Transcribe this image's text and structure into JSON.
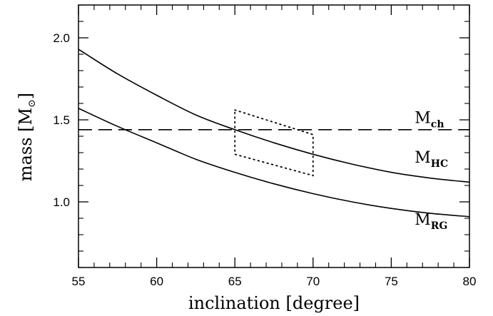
{
  "chart_data": {
    "type": "line",
    "xlabel": "inclination [degree]",
    "ylabel_main": "mass [M",
    "ylabel_sub": "⊙",
    "ylabel_close": "]",
    "xlim": [
      55,
      80
    ],
    "ylim": [
      0.6,
      2.2
    ],
    "xticks": [
      55,
      60,
      65,
      70,
      75,
      80
    ],
    "xtick_labels": [
      "55",
      "60",
      "65",
      "70",
      "75",
      "80"
    ],
    "yticks": [
      1.0,
      1.5,
      2.0
    ],
    "ytick_labels": [
      "1.0",
      "1.5",
      "2.0"
    ],
    "grid": false,
    "legend": "none",
    "series": [
      {
        "name": "M_HC",
        "label_main": "M",
        "label_sub": "HC",
        "label_at": [
          76.5,
          1.24
        ],
        "style": "solid",
        "x": [
          55,
          57.5,
          60,
          62.5,
          65,
          67.5,
          70,
          72.5,
          75,
          77.5,
          80
        ],
        "y": [
          1.93,
          1.78,
          1.65,
          1.53,
          1.44,
          1.36,
          1.29,
          1.23,
          1.18,
          1.145,
          1.12
        ]
      },
      {
        "name": "M_RG",
        "label_main": "M",
        "label_sub": "RG",
        "label_at": [
          76.5,
          0.86
        ],
        "style": "solid",
        "x": [
          55,
          57.5,
          60,
          62.5,
          65,
          67.5,
          70,
          72.5,
          75,
          77.5,
          80
        ],
        "y": [
          1.57,
          1.46,
          1.36,
          1.26,
          1.18,
          1.11,
          1.05,
          1.0,
          0.96,
          0.93,
          0.91
        ]
      },
      {
        "name": "M_ch",
        "label_main": "M",
        "label_sub": "ch",
        "label_at": [
          76.5,
          1.48
        ],
        "style": "dashed",
        "x": [
          55,
          80
        ],
        "y": [
          1.44,
          1.44
        ]
      }
    ],
    "region": {
      "style": "dotted",
      "x": [
        65,
        70,
        70,
        65,
        65
      ],
      "y": [
        1.56,
        1.41,
        1.16,
        1.29,
        1.56
      ]
    }
  }
}
